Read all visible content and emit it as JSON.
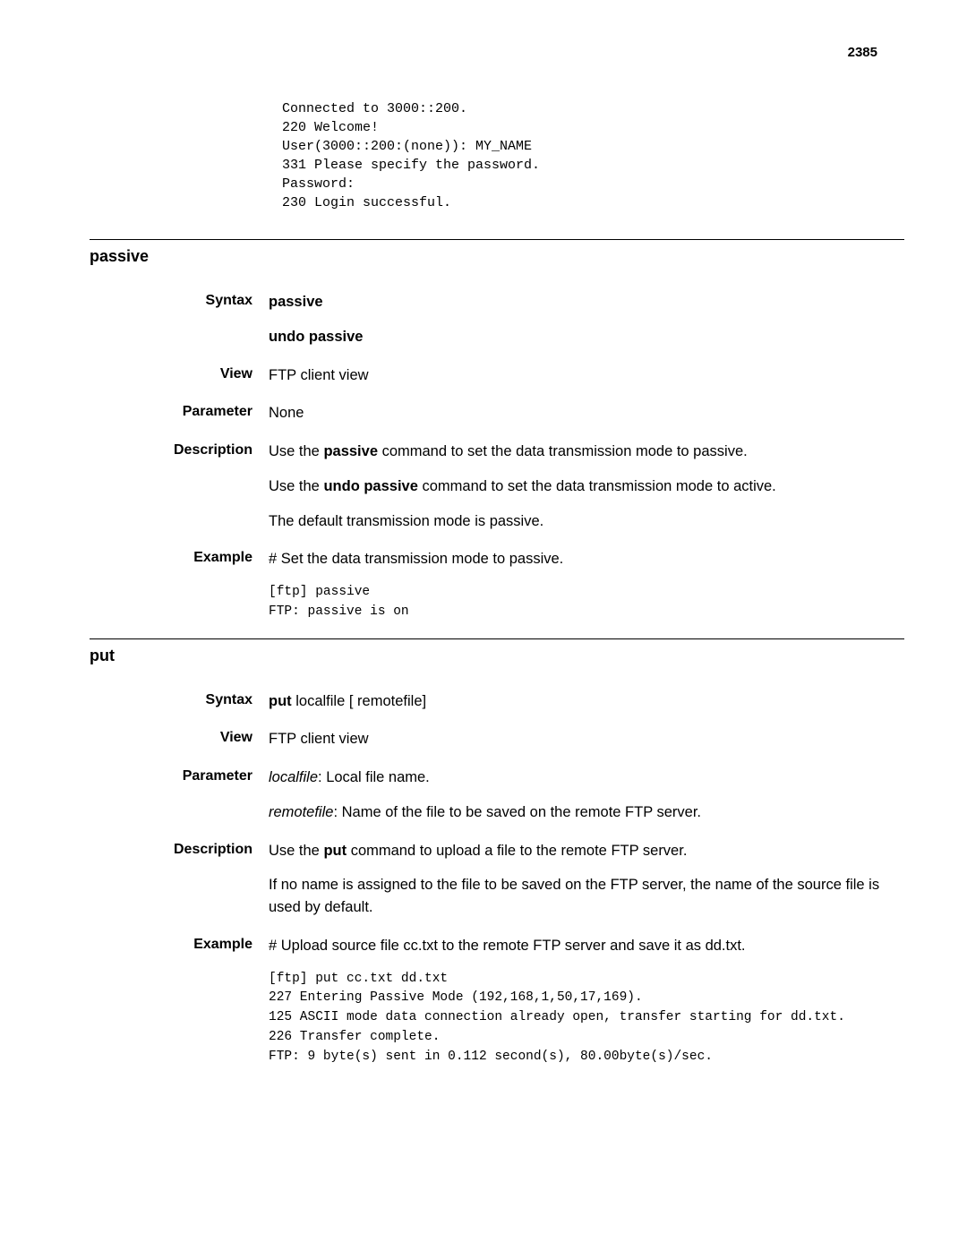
{
  "page_number": "2385",
  "intro_code": "Connected to 3000::200.\n220 Welcome!\nUser(3000::200:(none)): MY_NAME\n331 Please specify the password.\nPassword:\n230 Login successful.",
  "sections": [
    {
      "title": "passive",
      "entries": [
        {
          "label": "Syntax",
          "type": "syntax",
          "lines": [
            {
              "parts": [
                {
                  "t": "passive",
                  "b": true
                }
              ]
            },
            {
              "parts": [
                {
                  "t": "undo passive",
                  "b": true
                }
              ]
            }
          ]
        },
        {
          "label": "View",
          "type": "plain",
          "paragraphs": [
            [
              {
                "t": "FTP client view"
              }
            ]
          ]
        },
        {
          "label": "Parameter",
          "type": "plain",
          "paragraphs": [
            [
              {
                "t": "None"
              }
            ]
          ]
        },
        {
          "label": "Description",
          "type": "plain",
          "paragraphs": [
            [
              {
                "t": "Use the "
              },
              {
                "t": "passive",
                "b": true
              },
              {
                "t": " command to set the data transmission mode to passive."
              }
            ],
            [
              {
                "t": "Use the "
              },
              {
                "t": "undo passive",
                "b": true
              },
              {
                "t": " command to set the data transmission mode to active."
              }
            ],
            [
              {
                "t": "The default transmission mode is passive."
              }
            ]
          ]
        },
        {
          "label": "Example",
          "type": "example",
          "intro": [
            {
              "t": "# Set the data transmission mode to passive."
            }
          ],
          "code": "[ftp] passive\nFTP: passive is on"
        }
      ]
    },
    {
      "title": "put",
      "entries": [
        {
          "label": "Syntax",
          "type": "syntax",
          "lines": [
            {
              "parts": [
                {
                  "t": "put ",
                  "b": true
                },
                {
                  "t": "localfile "
                },
                {
                  "t": "[ "
                },
                {
                  "t": "remotefile"
                },
                {
                  "t": "]"
                }
              ]
            }
          ]
        },
        {
          "label": "View",
          "type": "plain",
          "paragraphs": [
            [
              {
                "t": "FTP client view"
              }
            ]
          ]
        },
        {
          "label": "Parameter",
          "type": "plain",
          "paragraphs": [
            [
              {
                "t": "localfile",
                "i": true
              },
              {
                "t": ": Local file name."
              }
            ],
            [
              {
                "t": "remotefile",
                "i": true
              },
              {
                "t": ": Name of the file to be saved on the remote FTP server."
              }
            ]
          ]
        },
        {
          "label": "Description",
          "type": "plain",
          "paragraphs": [
            [
              {
                "t": "Use the "
              },
              {
                "t": "put",
                "b": true
              },
              {
                "t": " command to upload a file to the remote FTP server."
              }
            ],
            [
              {
                "t": "If no name is assigned to the file to be saved on the FTP server, the name of the source file is used by default."
              }
            ]
          ]
        },
        {
          "label": "Example",
          "type": "example",
          "intro": [
            {
              "t": "# Upload source file cc.txt to the remote FTP server and save it as dd.txt."
            }
          ],
          "code": "[ftp] put cc.txt dd.txt\n227 Entering Passive Mode (192,168,1,50,17,169).\n125 ASCII mode data connection already open, transfer starting for dd.txt.\n226 Transfer complete.\nFTP: 9 byte(s) sent in 0.112 second(s), 80.00byte(s)/sec."
        }
      ]
    }
  ]
}
